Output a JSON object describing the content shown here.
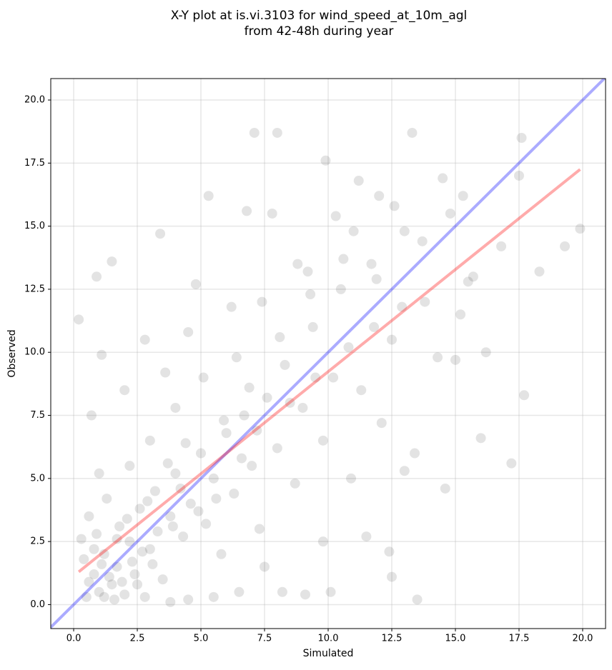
{
  "chart_data": {
    "type": "scatter",
    "title": "X-Y plot at is.vi.3103 for wind_speed_at_10m_agl",
    "subtitle": "from 42-48h during year",
    "xlabel": "Simulated",
    "ylabel": "Observed",
    "color": "#000000",
    "point_opacity": 0.06,
    "grid": true,
    "xlim": [
      -0.9,
      20.9
    ],
    "ylim": [
      -0.95,
      20.85
    ],
    "xticks": [
      {
        "value": 0,
        "label": "0.0"
      },
      2.5,
      {
        "value": 5,
        "label": "5.0"
      },
      7.5,
      {
        "value": 10,
        "label": "10.0"
      },
      12.5,
      {
        "value": 15,
        "label": "15.0"
      },
      17.5,
      {
        "value": 20,
        "label": "20.0"
      }
    ],
    "yticks": [
      {
        "value": 0,
        "label": "0.0"
      },
      2.5,
      {
        "value": 5,
        "label": "5.0"
      },
      7.5,
      {
        "value": 10,
        "label": "10.0"
      },
      12.5,
      {
        "value": 15,
        "label": "15.0"
      },
      17.5,
      {
        "value": 20,
        "label": "20.0"
      }
    ],
    "x": [
      0.5,
      0.8,
      1.0,
      1.2,
      1.5,
      1.7,
      2.0,
      2.2,
      0.6,
      0.9,
      1.3,
      1.8,
      2.4,
      2.6,
      3.0,
      3.2,
      3.5,
      3.8,
      4.0,
      4.3,
      4.6,
      5.0,
      5.2,
      5.5,
      5.8,
      6.0,
      6.3,
      6.7,
      7.0,
      7.3,
      7.6,
      8.0,
      8.3,
      8.7,
      9.0,
      9.4,
      9.8,
      10.2,
      10.5,
      10.9,
      11.3,
      11.7,
      12.1,
      12.5,
      13.0,
      13.4,
      13.8,
      14.3,
      14.8,
      15.2,
      15.7,
      16.2,
      16.8,
      17.2,
      17.6,
      17.7,
      18.3,
      19.3,
      19.9,
      13.3,
      8.0,
      7.1,
      9.9,
      0.2,
      0.9,
      1.5,
      3.4,
      4.8,
      5.3,
      2.8,
      1.1,
      0.7,
      2.0,
      3.6,
      4.5,
      6.2,
      7.8,
      9.2,
      11.0,
      12.0,
      14.5,
      11.5,
      12.4,
      12.5,
      13.5,
      9.1,
      10.1,
      8.2,
      9.8,
      7.5,
      6.5,
      5.5,
      4.5,
      3.8,
      2.8,
      1.6,
      0.4,
      0.3,
      1.4,
      2.3,
      1.9,
      1.1,
      2.7,
      3.3,
      3.9,
      4.2,
      4.9,
      5.6,
      6.6,
      7.2,
      8.5,
      9.5,
      10.8,
      11.8,
      12.9,
      15.0,
      16.0,
      14.6,
      13.0,
      3.0,
      2.2,
      1.0,
      4.0,
      5.1,
      6.4,
      7.4,
      8.8,
      10.3,
      0.6,
      1.2,
      2.5,
      3.1,
      0.8,
      1.7,
      2.1,
      2.9,
      3.7,
      4.4,
      5.9,
      6.9,
      8.1,
      9.3,
      10.6,
      11.9,
      13.7,
      15.5,
      17.5,
      12.6,
      11.2,
      6.8,
      15.3
    ],
    "values": [
      0.3,
      1.2,
      0.5,
      2.0,
      0.8,
      1.5,
      0.4,
      2.5,
      3.5,
      2.8,
      4.2,
      3.1,
      1.2,
      3.8,
      2.2,
      4.5,
      1.0,
      3.5,
      5.2,
      2.7,
      4.0,
      6.0,
      3.2,
      5.0,
      2.0,
      6.8,
      4.4,
      7.5,
      5.5,
      3.0,
      8.2,
      6.2,
      9.5,
      4.8,
      7.8,
      11.0,
      6.5,
      9.0,
      12.5,
      5.0,
      8.5,
      13.5,
      7.2,
      10.5,
      14.8,
      6.0,
      12.0,
      9.8,
      15.5,
      11.5,
      13.0,
      10.0,
      14.2,
      5.6,
      18.5,
      8.3,
      13.2,
      14.2,
      14.9,
      18.7,
      18.7,
      18.7,
      17.6,
      11.3,
      13.0,
      13.6,
      14.7,
      12.7,
      16.2,
      10.5,
      9.9,
      7.5,
      8.5,
      9.2,
      10.8,
      11.8,
      15.5,
      13.2,
      14.8,
      16.2,
      16.9,
      2.7,
      2.1,
      1.1,
      0.2,
      0.4,
      0.5,
      0.5,
      2.5,
      1.5,
      0.5,
      0.3,
      0.2,
      0.1,
      0.3,
      0.2,
      1.8,
      2.6,
      1.1,
      1.7,
      0.9,
      1.6,
      2.1,
      2.9,
      3.1,
      4.6,
      3.7,
      4.2,
      5.8,
      6.9,
      8.0,
      9.0,
      10.2,
      11.0,
      11.8,
      9.7,
      6.6,
      4.6,
      5.3,
      6.5,
      5.5,
      5.2,
      7.8,
      9.0,
      9.8,
      12.0,
      13.5,
      15.4,
      0.9,
      0.3,
      0.8,
      1.6,
      2.2,
      2.6,
      3.4,
      4.1,
      5.6,
      6.4,
      7.3,
      8.6,
      10.6,
      12.3,
      13.7,
      12.9,
      14.4,
      12.8,
      17.0,
      15.8,
      16.8,
      15.6,
      16.2
    ],
    "lines": [
      {
        "color": "#0000ff",
        "x": [
          -0.9,
          20.9
        ],
        "values": [
          -0.9,
          20.9
        ]
      },
      {
        "color": "#ff0000",
        "x": [
          0.2,
          19.9
        ],
        "values": [
          1.3,
          17.25
        ]
      }
    ]
  }
}
